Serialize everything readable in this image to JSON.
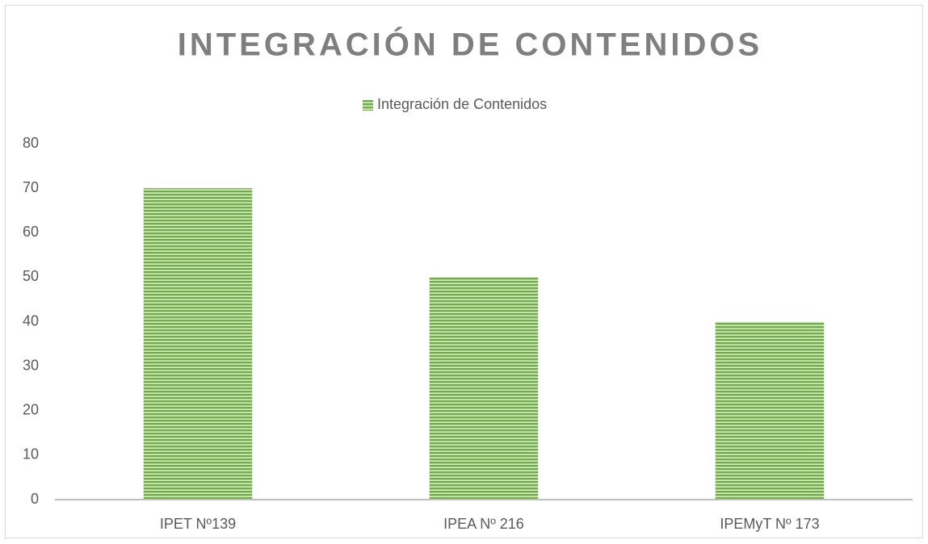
{
  "chart_data": {
    "type": "bar",
    "title": "INTEGRACIÓN DE CONTENIDOS",
    "categories": [
      "IPET Nº139",
      "IPEA Nº 216",
      "IPEMyT Nº 173"
    ],
    "series": [
      {
        "name": "Integración de Contenidos",
        "color": "#70ad47",
        "values": [
          70,
          50,
          40
        ]
      }
    ],
    "ylim": [
      0,
      80
    ],
    "yticks": [
      0,
      10,
      20,
      30,
      40,
      50,
      60,
      70,
      80
    ],
    "grid": false,
    "legend": "top"
  }
}
